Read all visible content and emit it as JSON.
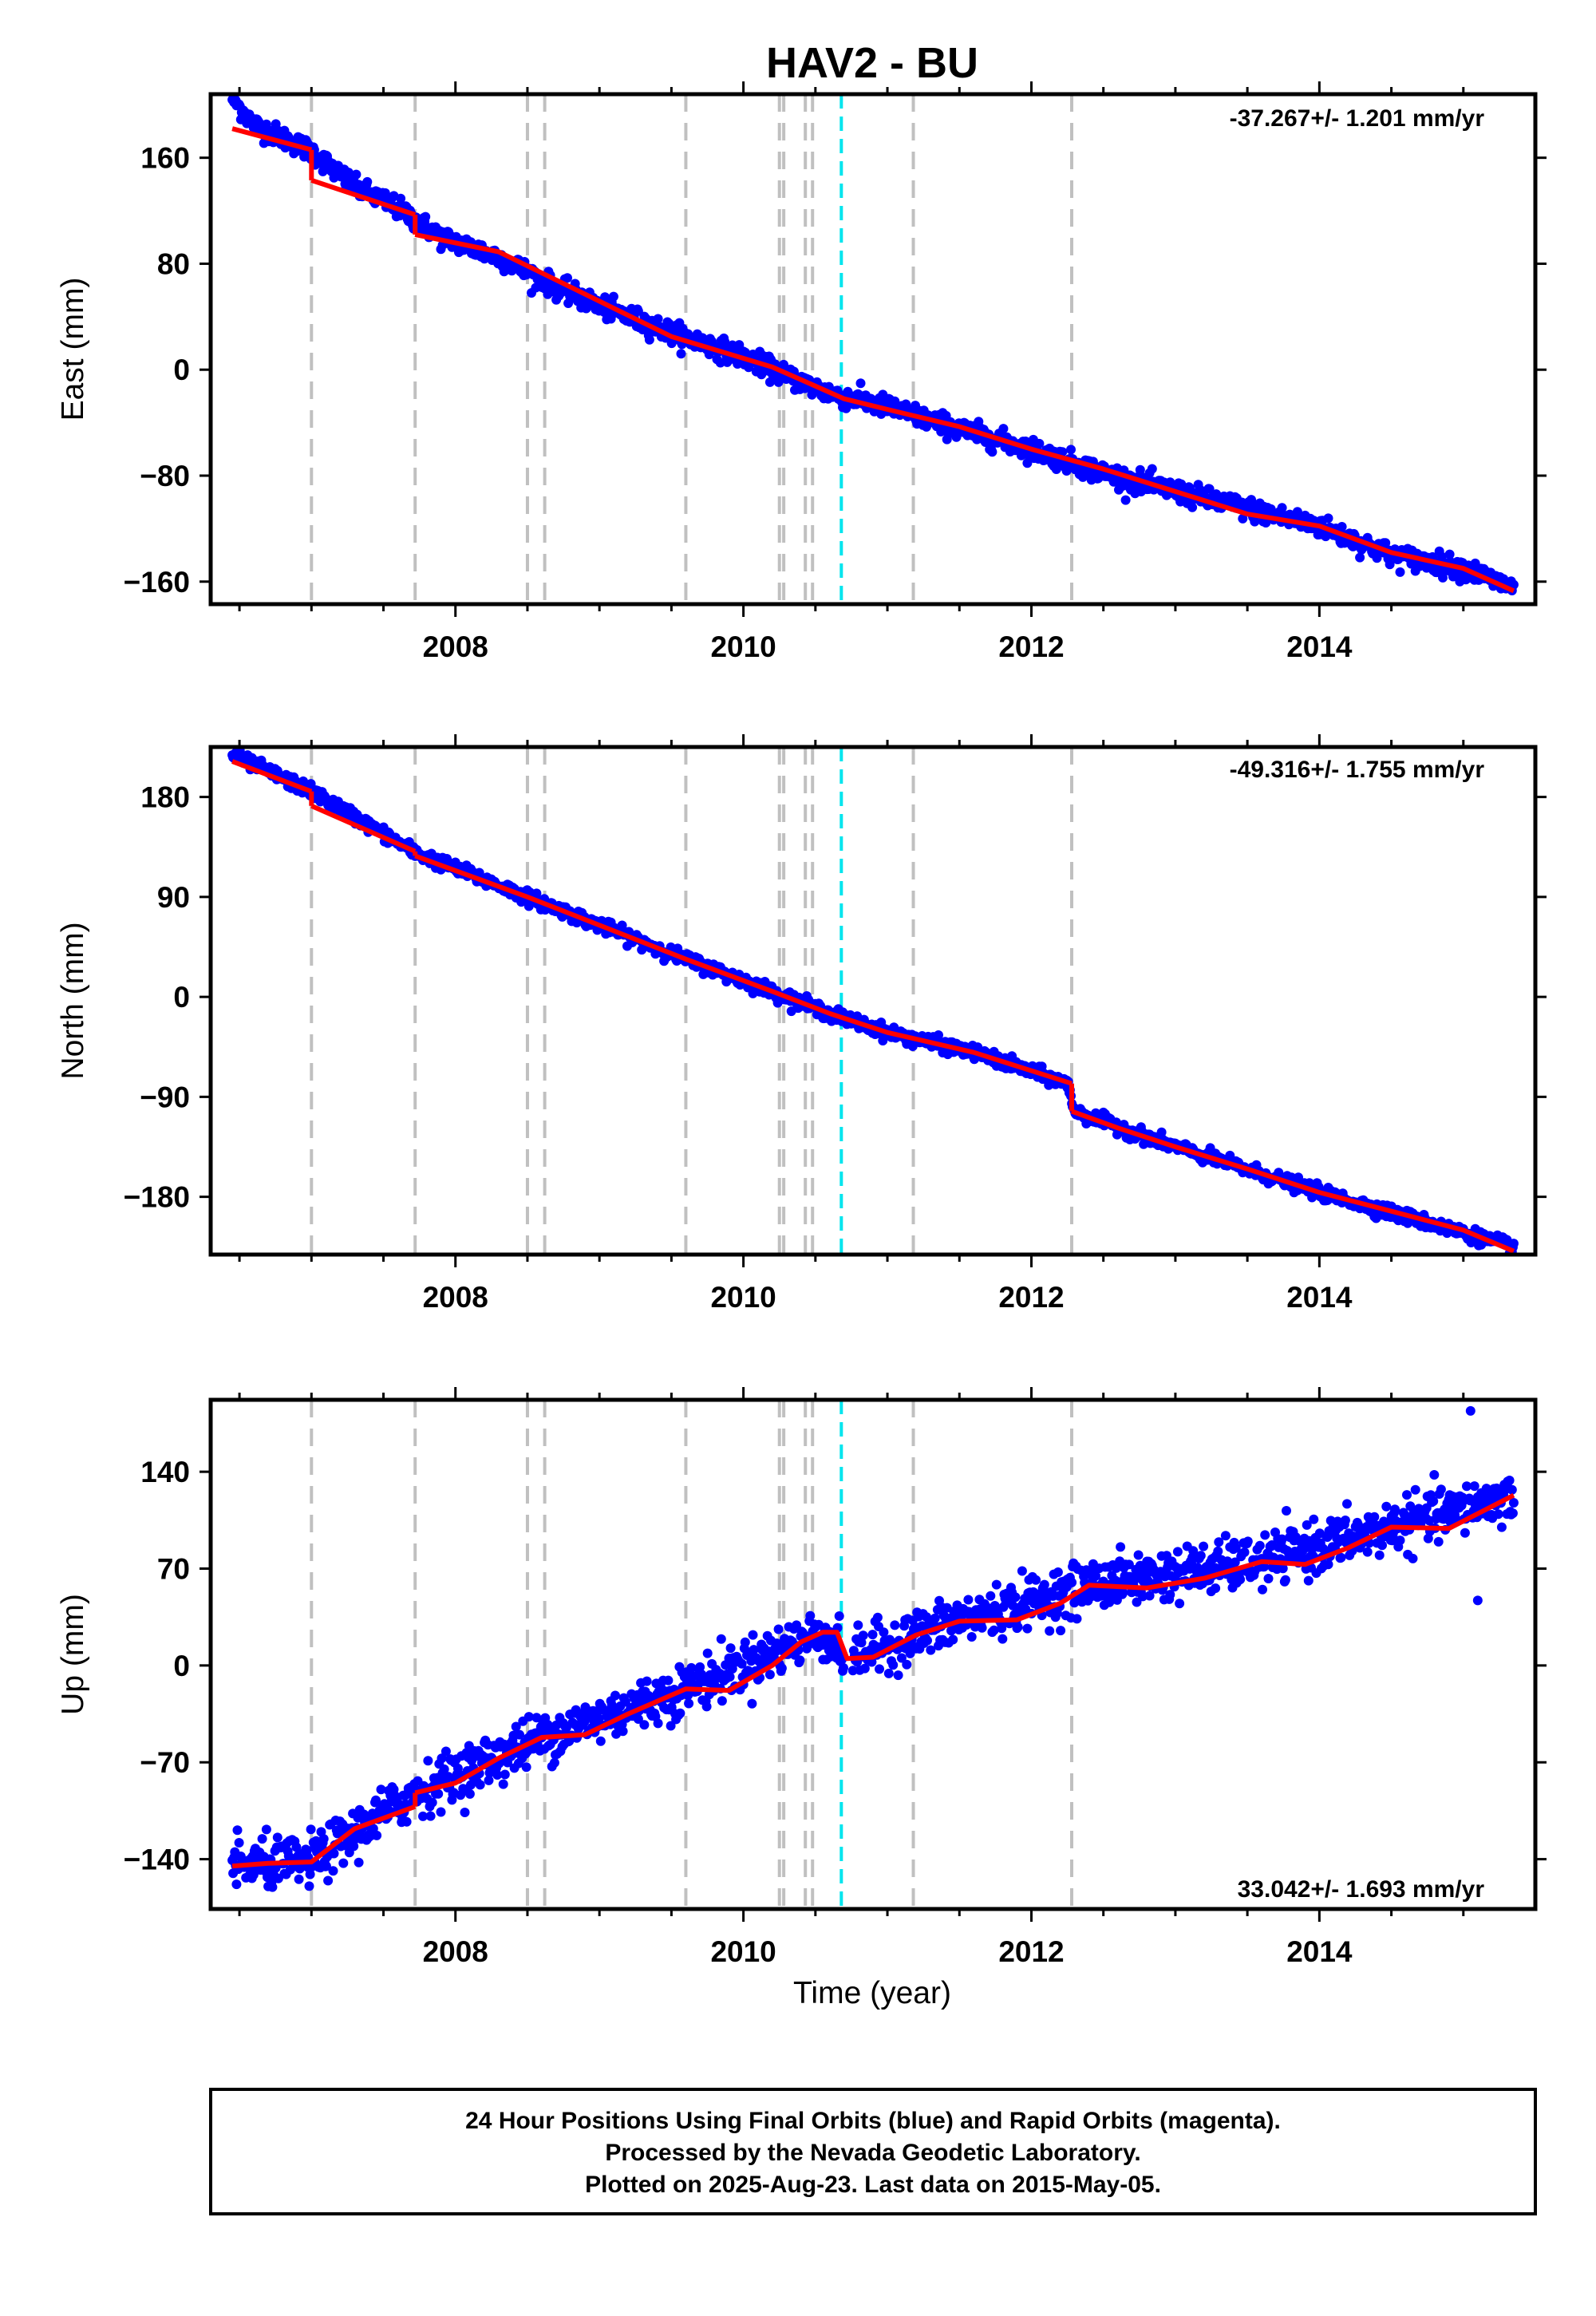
{
  "title": "HAV2 - BU",
  "xlabel": "Time (year)",
  "footer": {
    "line1": "24 Hour Positions Using Final Orbits (blue) and Rapid Orbits (magenta).",
    "line2": "Processed by the Nevada Geodetic Laboratory.",
    "line3": "Plotted on 2025-Aug-23. Last data on 2015-May-05."
  },
  "colors": {
    "data_points": "#0000ff",
    "model_line": "#ff0000",
    "event_line": "#c0c0c0",
    "highlight_event_line": "#00e5ee",
    "frame": "#000000"
  },
  "chart_data": [
    {
      "type": "scatter",
      "component": "east",
      "ylabel": "East (mm)",
      "rate_label": "-37.267+/- 1.201 mm/yr",
      "xlim": [
        2006.3,
        2015.5
      ],
      "ylim": [
        -177,
        208
      ],
      "xticks": [
        2008,
        2010,
        2012,
        2014
      ],
      "xtick_labels": [
        "2008",
        "2010",
        "2012",
        "2014"
      ],
      "yticks": [
        160,
        80,
        0,
        -80,
        -160
      ],
      "ytick_labels": [
        "160",
        "80",
        "0",
        "−80",
        "−160"
      ],
      "model": {
        "segments": [
          [
            [
              2006.45,
              182
            ],
            [
              2007.0,
              166
            ]
          ],
          [
            [
              2007.0,
              143
            ],
            [
              2007.72,
              117
            ]
          ],
          [
            [
              2007.72,
              102
            ],
            [
              2008.3,
              89
            ],
            [
              2009.5,
              25
            ],
            [
              2010.2,
              2
            ],
            [
              2010.45,
              -10
            ],
            [
              2010.7,
              -22
            ],
            [
              2011.0,
              -30
            ],
            [
              2011.5,
              -43
            ],
            [
              2012.0,
              -60
            ],
            [
              2012.5,
              -75
            ],
            [
              2013.0,
              -92
            ],
            [
              2013.5,
              -109
            ],
            [
              2014.0,
              -118
            ],
            [
              2014.5,
              -138
            ],
            [
              2015.0,
              -150
            ],
            [
              2015.35,
              -167
            ]
          ]
        ]
      },
      "scatter_sigma": 4,
      "series": [
        {
          "values_desc": "",
          "x": [
            2006.45,
            2006.6,
            2006.8,
            2007.0,
            2007.3,
            2007.6,
            2007.9,
            2008.3,
            2008.7,
            2009.0,
            2009.5,
            2010.0,
            2010.3,
            2010.6,
            2011.0,
            2011.5,
            2012.0,
            2012.5,
            2013.0,
            2013.5,
            2014.0,
            2014.5,
            2015.0,
            2015.35
          ],
          "y": [
            205,
            185,
            175,
            165,
            138,
            122,
            100,
            85,
            62,
            48,
            28,
            10,
            -5,
            -18,
            -28,
            -45,
            -60,
            -78,
            -92,
            -105,
            -118,
            -140,
            -150,
            -165
          ]
        }
      ]
    },
    {
      "type": "scatter",
      "component": "north",
      "ylabel": "North (mm)",
      "rate_label": "-49.316+/- 1.755 mm/yr",
      "xlim": [
        2006.3,
        2015.5
      ],
      "ylim": [
        -232,
        225
      ],
      "xticks": [
        2008,
        2010,
        2012,
        2014
      ],
      "xtick_labels": [
        "2008",
        "2010",
        "2012",
        "2014"
      ],
      "yticks": [
        180,
        90,
        0,
        -90,
        -180
      ],
      "ytick_labels": [
        "180",
        "90",
        "0",
        "−90",
        "−180"
      ],
      "model": {
        "segments": [
          [
            [
              2006.45,
              212
            ],
            [
              2007.0,
              185
            ]
          ],
          [
            [
              2007.0,
              172
            ],
            [
              2007.72,
              131
            ]
          ],
          [
            [
              2007.72,
              127
            ],
            [
              2008.5,
              90
            ],
            [
              2009.6,
              34
            ],
            [
              2010.2,
              5
            ],
            [
              2010.6,
              -15
            ],
            [
              2011.0,
              -32
            ],
            [
              2011.6,
              -50
            ],
            [
              2012.28,
              -78
            ]
          ],
          [
            [
              2012.28,
              -103
            ],
            [
              2012.6,
              -118
            ],
            [
              2013.0,
              -135
            ],
            [
              2013.5,
              -155
            ],
            [
              2014.0,
              -176
            ],
            [
              2014.5,
              -193
            ],
            [
              2015.0,
              -210
            ],
            [
              2015.35,
              -229
            ]
          ]
        ]
      },
      "scatter_sigma": 3,
      "series": [
        {
          "x": [
            2006.45,
            2007.0,
            2007.72,
            2008.5,
            2009.6,
            2010.2,
            2010.6,
            2011.0,
            2011.6,
            2012.25,
            2012.3,
            2013.0,
            2014.0,
            2015.35
          ],
          "y": [
            218,
            185,
            130,
            90,
            34,
            5,
            -15,
            -32,
            -50,
            -78,
            -103,
            -135,
            -176,
            -225
          ]
        }
      ]
    },
    {
      "type": "scatter",
      "component": "up",
      "ylabel": "Up (mm)",
      "rate_label": "33.042+/- 1.693 mm/yr",
      "xlim": [
        2006.3,
        2015.5
      ],
      "ylim": [
        -176,
        192
      ],
      "xticks": [
        2008,
        2010,
        2012,
        2014
      ],
      "xtick_labels": [
        "2008",
        "2010",
        "2012",
        "2014"
      ],
      "yticks": [
        140,
        70,
        0,
        -70,
        -140
      ],
      "ytick_labels": [
        "140",
        "70",
        "0",
        "−70",
        "−140"
      ],
      "model": {
        "segments": [
          [
            [
              2006.45,
              -145
            ],
            [
              2006.7,
              -143
            ],
            [
              2007.0,
              -142
            ],
            [
              2007.3,
              -118
            ],
            [
              2007.72,
              -102
            ]
          ],
          [
            [
              2007.72,
              -92
            ],
            [
              2008.0,
              -85
            ],
            [
              2008.3,
              -67
            ],
            [
              2008.6,
              -52
            ],
            [
              2008.9,
              -50
            ],
            [
              2009.2,
              -35
            ],
            [
              2009.6,
              -17
            ],
            [
              2009.9,
              -18
            ],
            [
              2010.2,
              0
            ],
            [
              2010.4,
              17
            ],
            [
              2010.55,
              24
            ],
            [
              2010.65,
              24
            ],
            [
              2010.72,
              5
            ],
            [
              2010.9,
              6
            ],
            [
              2011.2,
              22
            ],
            [
              2011.5,
              32
            ],
            [
              2011.9,
              33
            ],
            [
              2012.2,
              45
            ],
            [
              2012.4,
              58
            ],
            [
              2012.8,
              56
            ],
            [
              2013.2,
              63
            ],
            [
              2013.6,
              75
            ],
            [
              2013.9,
              73
            ],
            [
              2014.2,
              85
            ],
            [
              2014.5,
              100
            ],
            [
              2014.9,
              99
            ],
            [
              2015.35,
              123
            ]
          ]
        ]
      },
      "scatter_sigma": 9,
      "series": [
        {
          "x": [
            2006.45,
            2007.0,
            2007.72,
            2008.6,
            2009.6,
            2010.55,
            2010.72,
            2011.5,
            2012.4,
            2013.6,
            2014.5,
            2015.35
          ],
          "y": [
            -145,
            -142,
            -92,
            -52,
            -17,
            24,
            5,
            32,
            58,
            75,
            100,
            123
          ]
        }
      ],
      "outliers": [
        [
          2015.05,
          184
        ],
        [
          2015.1,
          47
        ]
      ]
    }
  ],
  "event_lines": {
    "gray": [
      2007.0,
      2007.72,
      2008.5,
      2008.62,
      2009.6,
      2010.25,
      2010.28,
      2010.43,
      2010.48,
      2011.18,
      2012.28
    ],
    "cyan": [
      2010.68
    ]
  }
}
